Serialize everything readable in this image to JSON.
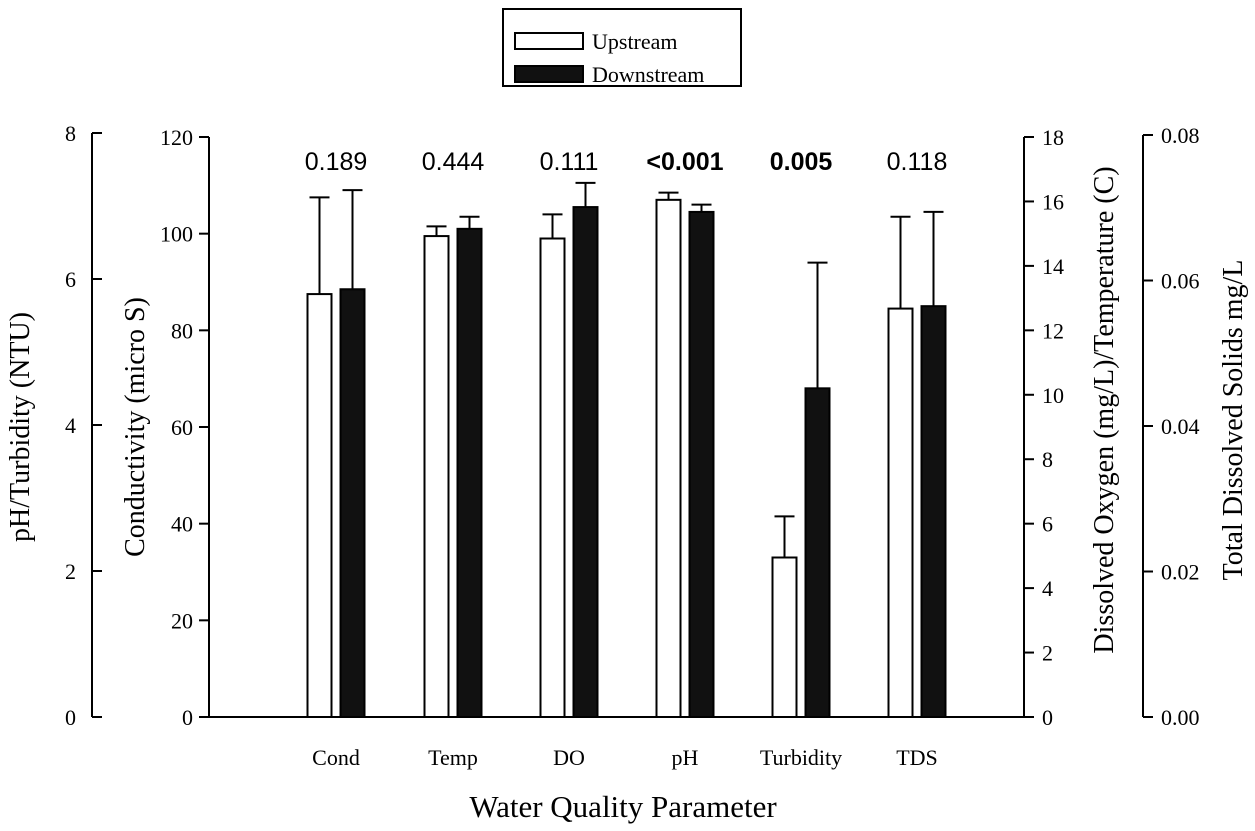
{
  "chart_data": {
    "type": "bar",
    "xlabel": "Water Quality Parameter",
    "categories": [
      "Cond",
      "Temp",
      "DO",
      "pH",
      "Turbidity",
      "TDS"
    ],
    "series": [
      {
        "name": "Upstream",
        "fill": "#ffffff",
        "values": [
          87.5,
          99.5,
          99.0,
          107.0,
          33.0,
          84.5
        ],
        "errors": [
          20.0,
          2.0,
          5.0,
          1.5,
          8.5,
          19.0
        ]
      },
      {
        "name": "Downstream",
        "fill": "#111111",
        "values": [
          88.5,
          101.0,
          105.5,
          104.5,
          68.0,
          85.0
        ],
        "errors": [
          20.5,
          2.5,
          5.0,
          1.5,
          26.0,
          19.5
        ]
      }
    ],
    "p_values": [
      {
        "text": "0.189",
        "bold": false
      },
      {
        "text": "0.444",
        "bold": false
      },
      {
        "text": "0.111",
        "bold": false
      },
      {
        "text": "<0.001",
        "bold": true
      },
      {
        "text": "0.005",
        "bold": true
      },
      {
        "text": "0.118",
        "bold": false
      }
    ],
    "axes": {
      "ph_turbidity": {
        "label": "pH/Turbidity (NTU)",
        "ylim": [
          0,
          8
        ],
        "ticks": [
          "0",
          "2",
          "4",
          "6",
          "8"
        ],
        "tick_values": [
          0,
          2,
          4,
          6,
          8
        ]
      },
      "conductivity": {
        "label": "Conductivity (micro S)",
        "ylim": [
          0,
          120
        ],
        "ticks": [
          "0",
          "20",
          "40",
          "60",
          "80",
          "100",
          "120"
        ],
        "tick_values": [
          0,
          20,
          40,
          60,
          80,
          100,
          120
        ]
      },
      "do_temperature": {
        "label": "Dissolved Oxygen (mg/L)/Temperature (C)",
        "ylim": [
          0,
          18
        ],
        "ticks": [
          "0",
          "2",
          "4",
          "6",
          "8",
          "10",
          "12",
          "14",
          "16",
          "18"
        ],
        "tick_values": [
          0,
          2,
          4,
          6,
          8,
          10,
          12,
          14,
          16,
          18
        ]
      },
      "tds": {
        "label": "Total Dissolved Solids mg/L",
        "ylim": [
          0,
          0.08
        ],
        "ticks": [
          "0.00",
          "0.02",
          "0.04",
          "0.06",
          "0.08"
        ],
        "tick_values": [
          0,
          0.02,
          0.04,
          0.06,
          0.08
        ]
      }
    },
    "legend": {
      "position": "top-center",
      "items": [
        "Upstream",
        "Downstream"
      ]
    },
    "grid": false
  }
}
